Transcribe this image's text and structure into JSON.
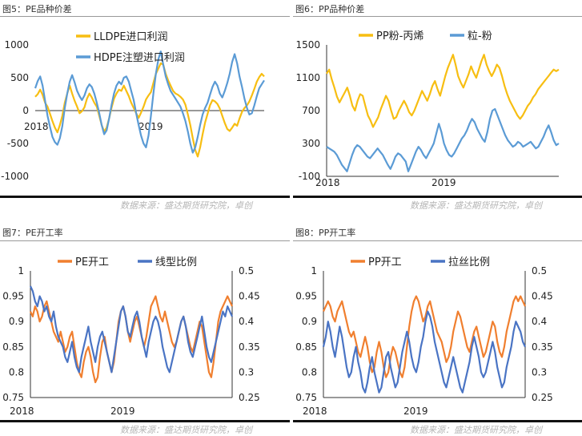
{
  "panels": {
    "p5": {
      "title": "图5：PE品种价差",
      "source": "数据来源：盛达期货研究院，卓创"
    },
    "p6": {
      "title": "图6：PP品种价差",
      "source": "数据来源：盛达期货研究院，卓创"
    },
    "p7": {
      "title": "图7：PE开工率",
      "source": "数据来源：盛达期货研究院，卓创"
    },
    "p8": {
      "title": "图8：PP开工率",
      "source": "数据来源：盛达期货研究院，卓创"
    }
  },
  "colors": {
    "orange": "#f07f2f",
    "yellow": "#f7be12",
    "blue": "#4a74c4",
    "lightblue": "#5b9bd5"
  },
  "chart_data": [
    {
      "id": "pe-spread",
      "type": "line",
      "title": "",
      "x_ticks": [
        "2018",
        "2019"
      ],
      "y_ticks": [
        "1000",
        "500",
        "0",
        "-500",
        "-1000"
      ],
      "ylim": [
        -1000,
        1000
      ],
      "legend_position": "top-right",
      "series": [
        {
          "name": "LLDPE进口利润",
          "color": "#f7be12",
          "values": [
            210,
            250,
            320,
            240,
            120,
            60,
            -50,
            -160,
            -260,
            -330,
            -220,
            -80,
            120,
            260,
            380,
            260,
            150,
            60,
            -40,
            -10,
            50,
            180,
            260,
            200,
            120,
            60,
            -80,
            -220,
            -320,
            -260,
            -120,
            40,
            180,
            260,
            320,
            300,
            380,
            300,
            220,
            120,
            40,
            -40,
            -110,
            -30,
            60,
            170,
            230,
            280,
            420,
            560,
            640,
            720,
            700,
            560,
            460,
            380,
            300,
            260,
            240,
            210,
            170,
            90,
            -60,
            -220,
            -420,
            -600,
            -700,
            -560,
            -360,
            -180,
            -50,
            80,
            160,
            140,
            100,
            30,
            -80,
            -190,
            -280,
            -310,
            -260,
            -200,
            -230,
            -120,
            -20,
            40,
            80,
            140,
            230,
            330,
            440,
            510,
            560,
            520
          ]
        },
        {
          "name": "HDPE注塑进口利润",
          "color": "#5b9bd5",
          "values": [
            340,
            450,
            520,
            380,
            150,
            -80,
            -250,
            -400,
            -480,
            -520,
            -420,
            -240,
            40,
            260,
            440,
            540,
            430,
            300,
            220,
            160,
            230,
            340,
            400,
            360,
            260,
            120,
            -40,
            -220,
            -360,
            -300,
            -120,
            80,
            260,
            380,
            440,
            400,
            500,
            520,
            440,
            300,
            160,
            -40,
            -220,
            -380,
            -500,
            -560,
            -380,
            -80,
            260,
            560,
            780,
            900,
            700,
            520,
            400,
            300,
            240,
            180,
            120,
            60,
            -40,
            -160,
            -320,
            -500,
            -640,
            -560,
            -400,
            -220,
            -60,
            40,
            120,
            240,
            360,
            440,
            380,
            260,
            200,
            300,
            420,
            560,
            740,
            860,
            720,
            520,
            360,
            180,
            40,
            -60,
            -40,
            80,
            220,
            340,
            400,
            460
          ]
        }
      ]
    },
    {
      "id": "pp-spread",
      "type": "line",
      "title": "",
      "x_ticks": [
        "2018",
        "2019"
      ],
      "y_ticks": [
        "1500",
        "1100",
        "700",
        "300",
        "-100"
      ],
      "ylim": [
        -100,
        1500
      ],
      "legend_position": "top",
      "series": [
        {
          "name": "PP粉-丙烯",
          "color": "#f7be12",
          "values": [
            1150,
            1200,
            1080,
            980,
            870,
            800,
            860,
            920,
            980,
            880,
            760,
            700,
            820,
            900,
            880,
            760,
            640,
            580,
            500,
            560,
            620,
            720,
            800,
            880,
            820,
            700,
            600,
            620,
            700,
            760,
            820,
            760,
            680,
            640,
            700,
            780,
            860,
            940,
            880,
            820,
            900,
            1000,
            1060,
            960,
            880,
            1000,
            1120,
            1220,
            1300,
            1380,
            1260,
            1120,
            1040,
            980,
            1060,
            1140,
            1240,
            1160,
            1100,
            1200,
            1300,
            1380,
            1260,
            1180,
            1120,
            1180,
            1260,
            1220,
            1120,
            1000,
            900,
            820,
            760,
            700,
            640,
            600,
            640,
            700,
            760,
            800,
            860,
            900,
            960,
            1000,
            1040,
            1080,
            1120,
            1160,
            1200,
            1180,
            1200
          ]
        },
        {
          "name": "粒-粉",
          "color": "#5b9bd5",
          "values": [
            260,
            240,
            220,
            200,
            160,
            100,
            40,
            0,
            -40,
            60,
            160,
            240,
            280,
            260,
            220,
            180,
            140,
            120,
            160,
            200,
            240,
            200,
            160,
            100,
            40,
            -10,
            60,
            140,
            180,
            160,
            120,
            80,
            -40,
            40,
            120,
            200,
            260,
            220,
            160,
            120,
            180,
            240,
            300,
            420,
            540,
            440,
            300,
            220,
            160,
            140,
            180,
            240,
            300,
            360,
            400,
            460,
            540,
            600,
            560,
            480,
            420,
            360,
            320,
            440,
            600,
            700,
            720,
            640,
            560,
            480,
            400,
            340,
            300,
            260,
            280,
            320,
            300,
            260,
            280,
            300,
            320,
            280,
            240,
            260,
            320,
            380,
            460,
            520,
            440,
            340,
            280,
            300
          ]
        }
      ]
    },
    {
      "id": "pe-operating-rate",
      "type": "line",
      "title": "",
      "x_ticks": [
        "2018",
        "2019"
      ],
      "y_ticks_left": [
        "1",
        "0.95",
        "0.9",
        "0.85",
        "0.8",
        "0.75"
      ],
      "y_ticks_right": [
        "0.5",
        "0.45",
        "0.4",
        "0.35",
        "0.3",
        "0.25"
      ],
      "ylim_left": [
        0.75,
        1
      ],
      "ylim_right": [
        0.25,
        0.5
      ],
      "legend_position": "top",
      "series": [
        {
          "name": "PE开工",
          "color": "#f07f2f",
          "axis": "left",
          "values": [
            0.92,
            0.91,
            0.93,
            0.92,
            0.9,
            0.91,
            0.93,
            0.94,
            0.92,
            0.9,
            0.88,
            0.87,
            0.86,
            0.88,
            0.86,
            0.84,
            0.85,
            0.87,
            0.88,
            0.85,
            0.82,
            0.8,
            0.79,
            0.82,
            0.84,
            0.85,
            0.83,
            0.8,
            0.78,
            0.79,
            0.83,
            0.86,
            0.87,
            0.84,
            0.82,
            0.8,
            0.82,
            0.86,
            0.9,
            0.92,
            0.93,
            0.91,
            0.88,
            0.86,
            0.88,
            0.9,
            0.91,
            0.89,
            0.87,
            0.85,
            0.87,
            0.9,
            0.93,
            0.94,
            0.95,
            0.93,
            0.91,
            0.9,
            0.92,
            0.9,
            0.88,
            0.86,
            0.85,
            0.86,
            0.88,
            0.9,
            0.91,
            0.89,
            0.87,
            0.85,
            0.84,
            0.86,
            0.88,
            0.9,
            0.89,
            0.86,
            0.83,
            0.8,
            0.79,
            0.82,
            0.86,
            0.9,
            0.92,
            0.93,
            0.94,
            0.95,
            0.94,
            0.93
          ]
        },
        {
          "name": "线型比例",
          "color": "#4a74c4",
          "axis": "right",
          "values": [
            0.47,
            0.46,
            0.44,
            0.43,
            0.45,
            0.44,
            0.42,
            0.43,
            0.41,
            0.4,
            0.42,
            0.39,
            0.37,
            0.36,
            0.35,
            0.33,
            0.32,
            0.34,
            0.36,
            0.33,
            0.31,
            0.3,
            0.33,
            0.35,
            0.37,
            0.39,
            0.36,
            0.34,
            0.32,
            0.35,
            0.37,
            0.38,
            0.36,
            0.34,
            0.32,
            0.3,
            0.33,
            0.36,
            0.39,
            0.42,
            0.43,
            0.41,
            0.38,
            0.37,
            0.39,
            0.41,
            0.42,
            0.4,
            0.37,
            0.35,
            0.33,
            0.36,
            0.38,
            0.4,
            0.41,
            0.4,
            0.38,
            0.35,
            0.33,
            0.31,
            0.3,
            0.32,
            0.34,
            0.36,
            0.38,
            0.4,
            0.41,
            0.39,
            0.36,
            0.34,
            0.33,
            0.35,
            0.37,
            0.39,
            0.41,
            0.38,
            0.35,
            0.33,
            0.32,
            0.34,
            0.36,
            0.38,
            0.4,
            0.42,
            0.41,
            0.43,
            0.42,
            0.41
          ]
        }
      ]
    },
    {
      "id": "pp-operating-rate",
      "type": "line",
      "title": "",
      "x_ticks": [
        "2018",
        "2019"
      ],
      "y_ticks_left": [
        "1",
        "0.95",
        "0.9",
        "0.85",
        "0.8",
        "0.75"
      ],
      "y_ticks_right": [
        "0.5",
        "0.45",
        "0.4",
        "0.35",
        "0.3",
        "0.25"
      ],
      "ylim_left": [
        0.75,
        1
      ],
      "ylim_right": [
        0.25,
        0.5
      ],
      "legend_position": "top",
      "series": [
        {
          "name": "PP开工",
          "color": "#f07f2f",
          "axis": "left",
          "values": [
            0.92,
            0.93,
            0.94,
            0.93,
            0.91,
            0.9,
            0.92,
            0.93,
            0.94,
            0.92,
            0.9,
            0.88,
            0.87,
            0.88,
            0.86,
            0.84,
            0.83,
            0.85,
            0.87,
            0.85,
            0.82,
            0.8,
            0.81,
            0.84,
            0.86,
            0.84,
            0.81,
            0.79,
            0.8,
            0.83,
            0.85,
            0.84,
            0.82,
            0.8,
            0.79,
            0.81,
            0.85,
            0.89,
            0.92,
            0.94,
            0.95,
            0.94,
            0.92,
            0.9,
            0.91,
            0.93,
            0.94,
            0.92,
            0.9,
            0.88,
            0.87,
            0.86,
            0.84,
            0.82,
            0.83,
            0.85,
            0.88,
            0.9,
            0.92,
            0.91,
            0.89,
            0.87,
            0.85,
            0.84,
            0.86,
            0.88,
            0.89,
            0.87,
            0.85,
            0.83,
            0.84,
            0.86,
            0.88,
            0.9,
            0.89,
            0.86,
            0.84,
            0.83,
            0.85,
            0.88,
            0.9,
            0.92,
            0.94,
            0.95,
            0.94,
            0.95,
            0.94,
            0.93
          ]
        },
        {
          "name": "拉丝比例",
          "color": "#4a74c4",
          "axis": "right",
          "values": [
            0.35,
            0.37,
            0.4,
            0.38,
            0.35,
            0.33,
            0.36,
            0.39,
            0.37,
            0.34,
            0.31,
            0.29,
            0.3,
            0.33,
            0.35,
            0.32,
            0.3,
            0.27,
            0.26,
            0.28,
            0.31,
            0.33,
            0.3,
            0.28,
            0.26,
            0.27,
            0.3,
            0.33,
            0.34,
            0.31,
            0.29,
            0.27,
            0.28,
            0.31,
            0.34,
            0.36,
            0.38,
            0.36,
            0.33,
            0.31,
            0.3,
            0.32,
            0.35,
            0.37,
            0.4,
            0.42,
            0.41,
            0.39,
            0.36,
            0.34,
            0.32,
            0.3,
            0.28,
            0.27,
            0.29,
            0.31,
            0.33,
            0.31,
            0.29,
            0.27,
            0.26,
            0.28,
            0.3,
            0.32,
            0.35,
            0.37,
            0.35,
            0.33,
            0.3,
            0.29,
            0.3,
            0.32,
            0.34,
            0.36,
            0.34,
            0.31,
            0.29,
            0.27,
            0.28,
            0.31,
            0.33,
            0.35,
            0.38,
            0.4,
            0.39,
            0.38,
            0.36,
            0.35
          ]
        }
      ]
    }
  ]
}
